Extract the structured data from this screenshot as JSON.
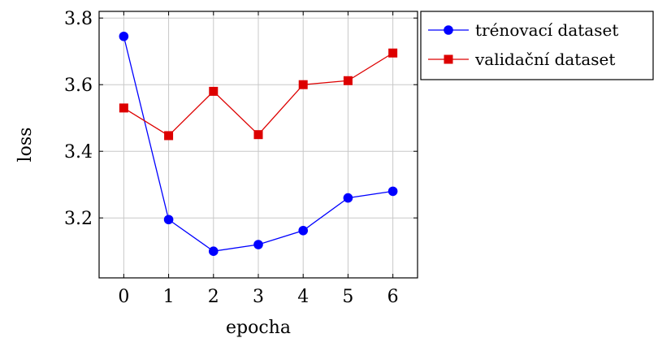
{
  "chart_data": {
    "type": "line",
    "title": "",
    "xlabel": "epocha",
    "ylabel": "loss",
    "x": [
      0,
      1,
      2,
      3,
      4,
      5,
      6
    ],
    "xticks": [
      "0",
      "1",
      "2",
      "3",
      "4",
      "5",
      "6"
    ],
    "xlim": [
      -0.55,
      6.55
    ],
    "yticks": [
      "3.2",
      "3.4",
      "3.6",
      "3.8"
    ],
    "ytick_values": [
      3.2,
      3.4,
      3.6,
      3.8
    ],
    "ylim": [
      3.02,
      3.82
    ],
    "grid": true,
    "legend_position": "outside-top-right",
    "series": [
      {
        "name": "trénovací dataset",
        "color": "#0000ff",
        "marker": "circle",
        "values": [
          3.745,
          3.195,
          3.1,
          3.12,
          3.162,
          3.26,
          3.28
        ]
      },
      {
        "name": "validační dataset",
        "color": "#dd0000",
        "marker": "square",
        "values": [
          3.53,
          3.447,
          3.58,
          3.45,
          3.6,
          3.612,
          3.695
        ]
      }
    ]
  }
}
